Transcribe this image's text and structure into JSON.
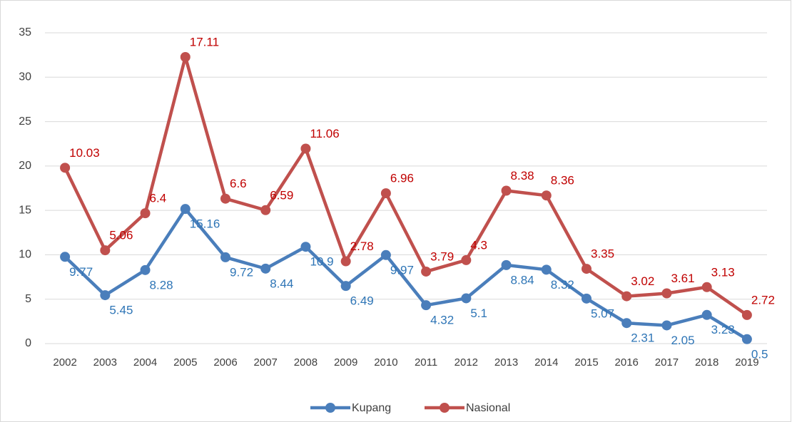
{
  "chart_data": {
    "type": "line",
    "stacked": true,
    "categories": [
      "2002",
      "2003",
      "2004",
      "2005",
      "2006",
      "2007",
      "2008",
      "2009",
      "2010",
      "2011",
      "2012",
      "2013",
      "2014",
      "2015",
      "2016",
      "2017",
      "2018",
      "2019"
    ],
    "series": [
      {
        "name": "Kupang",
        "color": "#4a7ebb",
        "label_color": "#2e75b6",
        "values": [
          9.77,
          5.45,
          8.28,
          15.16,
          9.72,
          8.44,
          10.9,
          6.49,
          9.97,
          4.32,
          5.1,
          8.84,
          8.32,
          5.07,
          2.31,
          2.05,
          3.23,
          0.5
        ]
      },
      {
        "name": "Nasional",
        "color": "#c0504d",
        "label_color": "#c00000",
        "values": [
          10.03,
          5.06,
          6.4,
          17.11,
          6.6,
          6.59,
          11.06,
          2.78,
          6.96,
          3.79,
          4.3,
          8.38,
          8.36,
          3.35,
          3.02,
          3.61,
          3.13,
          2.72
        ]
      }
    ],
    "ylim": [
      0,
      35
    ],
    "yticks": [
      0,
      5,
      10,
      15,
      20,
      25,
      30,
      35
    ],
    "grid": true,
    "legend": "bottom"
  }
}
